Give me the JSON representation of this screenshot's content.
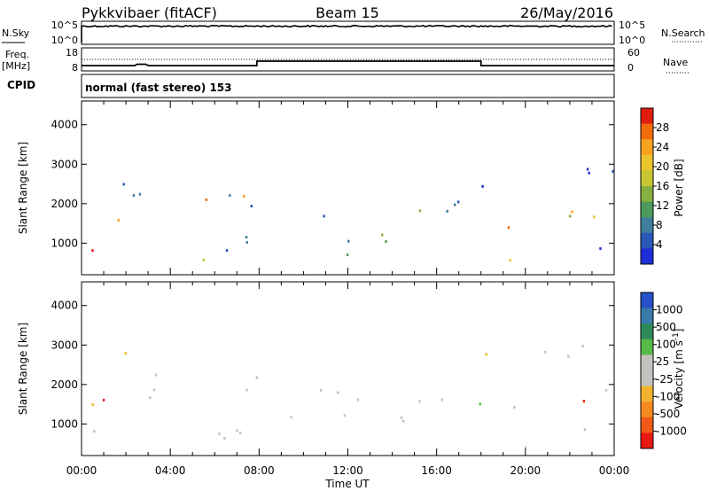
{
  "header": {
    "radar": "Pykkvibaer (fitACF)",
    "beam": "Beam 15",
    "date": "26/May/2016"
  },
  "nsky_panel": {
    "left_label": "N.Sky",
    "left_ticks": [
      "10^5",
      "10^0"
    ],
    "right_ticks": [
      "10^5",
      "10^0"
    ],
    "right_label": "N.Search"
  },
  "freq_panel": {
    "left_label_1": "Freq.",
    "left_label_2": "[MHz]",
    "left_ticks": [
      "18",
      "8"
    ],
    "right_ticks": [
      "60",
      "0"
    ],
    "right_label": "Nave"
  },
  "cpid_panel": {
    "label": "CPID",
    "text": "normal (fast stereo) 153"
  },
  "chart_data": [
    {
      "type": "heatmap",
      "name": "power",
      "ylabel": "Slant Range [km]",
      "ylim": [
        200,
        4600
      ],
      "yticks": [
        1000,
        2000,
        3000,
        4000
      ],
      "xlim": [
        0,
        24
      ],
      "colorbar": {
        "label": "Power [dB]",
        "ticks": [
          "28",
          "24",
          "20",
          "16",
          "12",
          "8",
          "4"
        ],
        "colors": [
          "#e11d10",
          "#f06d0a",
          "#f9a21f",
          "#e9c42b",
          "#c7c532",
          "#87b040",
          "#4d9a5e",
          "#3f7e9c",
          "#2a58b8",
          "#1e2fd8"
        ]
      }
    },
    {
      "type": "heatmap",
      "name": "velocity",
      "ylabel": "Slant Range [km]",
      "ylim": [
        200,
        4600
      ],
      "yticks": [
        1000,
        2000,
        3000,
        4000
      ],
      "xlim": [
        0,
        24
      ],
      "colorbar": {
        "label": "Velocity [m s-1]",
        "ticks": [
          "1000",
          "500",
          "100",
          "25",
          "-25",
          "-100",
          "-500",
          "-1000"
        ],
        "colors": [
          "#2850c8",
          "#3a7aa8",
          "#2f8a5a",
          "#58b848",
          "#c2c2be",
          "#c2c2be",
          "#f2b430",
          "#f48a20",
          "#f05a18",
          "#e81812"
        ]
      }
    }
  ],
  "time_axis": {
    "label": "Time UT",
    "ticks": [
      "00:00",
      "04:00",
      "08:00",
      "12:00",
      "16:00",
      "20:00",
      "00:00"
    ]
  }
}
